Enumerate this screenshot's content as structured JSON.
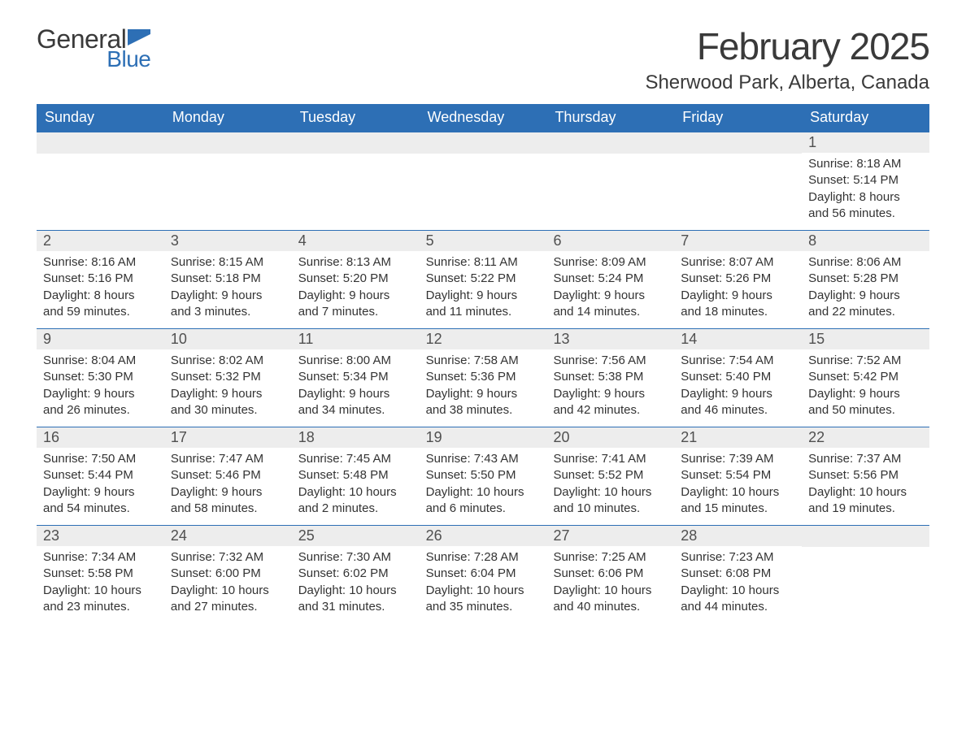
{
  "logo": {
    "word1": "General",
    "word2": "Blue",
    "icon_fill": "#2d6fb5"
  },
  "header": {
    "month_title": "February 2025",
    "location": "Sherwood Park, Alberta, Canada"
  },
  "colors": {
    "header_bar": "#2d6fb5",
    "header_text": "#ffffff",
    "day_band": "#ededed",
    "week_border": "#2d6fb5",
    "text": "#333333",
    "title_text": "#3a3a3a",
    "background": "#ffffff"
  },
  "typography": {
    "month_title_fontsize": 46,
    "location_fontsize": 24,
    "dow_fontsize": 18,
    "daynum_fontsize": 18,
    "body_fontsize": 15,
    "font_family": "Segoe UI"
  },
  "days_of_week": [
    "Sunday",
    "Monday",
    "Tuesday",
    "Wednesday",
    "Thursday",
    "Friday",
    "Saturday"
  ],
  "leading_blanks": 6,
  "days": [
    {
      "n": 1,
      "sunrise": "8:18 AM",
      "sunset": "5:14 PM",
      "daylight": "8 hours and 56 minutes."
    },
    {
      "n": 2,
      "sunrise": "8:16 AM",
      "sunset": "5:16 PM",
      "daylight": "8 hours and 59 minutes."
    },
    {
      "n": 3,
      "sunrise": "8:15 AM",
      "sunset": "5:18 PM",
      "daylight": "9 hours and 3 minutes."
    },
    {
      "n": 4,
      "sunrise": "8:13 AM",
      "sunset": "5:20 PM",
      "daylight": "9 hours and 7 minutes."
    },
    {
      "n": 5,
      "sunrise": "8:11 AM",
      "sunset": "5:22 PM",
      "daylight": "9 hours and 11 minutes."
    },
    {
      "n": 6,
      "sunrise": "8:09 AM",
      "sunset": "5:24 PM",
      "daylight": "9 hours and 14 minutes."
    },
    {
      "n": 7,
      "sunrise": "8:07 AM",
      "sunset": "5:26 PM",
      "daylight": "9 hours and 18 minutes."
    },
    {
      "n": 8,
      "sunrise": "8:06 AM",
      "sunset": "5:28 PM",
      "daylight": "9 hours and 22 minutes."
    },
    {
      "n": 9,
      "sunrise": "8:04 AM",
      "sunset": "5:30 PM",
      "daylight": "9 hours and 26 minutes."
    },
    {
      "n": 10,
      "sunrise": "8:02 AM",
      "sunset": "5:32 PM",
      "daylight": "9 hours and 30 minutes."
    },
    {
      "n": 11,
      "sunrise": "8:00 AM",
      "sunset": "5:34 PM",
      "daylight": "9 hours and 34 minutes."
    },
    {
      "n": 12,
      "sunrise": "7:58 AM",
      "sunset": "5:36 PM",
      "daylight": "9 hours and 38 minutes."
    },
    {
      "n": 13,
      "sunrise": "7:56 AM",
      "sunset": "5:38 PM",
      "daylight": "9 hours and 42 minutes."
    },
    {
      "n": 14,
      "sunrise": "7:54 AM",
      "sunset": "5:40 PM",
      "daylight": "9 hours and 46 minutes."
    },
    {
      "n": 15,
      "sunrise": "7:52 AM",
      "sunset": "5:42 PM",
      "daylight": "9 hours and 50 minutes."
    },
    {
      "n": 16,
      "sunrise": "7:50 AM",
      "sunset": "5:44 PM",
      "daylight": "9 hours and 54 minutes."
    },
    {
      "n": 17,
      "sunrise": "7:47 AM",
      "sunset": "5:46 PM",
      "daylight": "9 hours and 58 minutes."
    },
    {
      "n": 18,
      "sunrise": "7:45 AM",
      "sunset": "5:48 PM",
      "daylight": "10 hours and 2 minutes."
    },
    {
      "n": 19,
      "sunrise": "7:43 AM",
      "sunset": "5:50 PM",
      "daylight": "10 hours and 6 minutes."
    },
    {
      "n": 20,
      "sunrise": "7:41 AM",
      "sunset": "5:52 PM",
      "daylight": "10 hours and 10 minutes."
    },
    {
      "n": 21,
      "sunrise": "7:39 AM",
      "sunset": "5:54 PM",
      "daylight": "10 hours and 15 minutes."
    },
    {
      "n": 22,
      "sunrise": "7:37 AM",
      "sunset": "5:56 PM",
      "daylight": "10 hours and 19 minutes."
    },
    {
      "n": 23,
      "sunrise": "7:34 AM",
      "sunset": "5:58 PM",
      "daylight": "10 hours and 23 minutes."
    },
    {
      "n": 24,
      "sunrise": "7:32 AM",
      "sunset": "6:00 PM",
      "daylight": "10 hours and 27 minutes."
    },
    {
      "n": 25,
      "sunrise": "7:30 AM",
      "sunset": "6:02 PM",
      "daylight": "10 hours and 31 minutes."
    },
    {
      "n": 26,
      "sunrise": "7:28 AM",
      "sunset": "6:04 PM",
      "daylight": "10 hours and 35 minutes."
    },
    {
      "n": 27,
      "sunrise": "7:25 AM",
      "sunset": "6:06 PM",
      "daylight": "10 hours and 40 minutes."
    },
    {
      "n": 28,
      "sunrise": "7:23 AM",
      "sunset": "6:08 PM",
      "daylight": "10 hours and 44 minutes."
    }
  ],
  "labels": {
    "sunrise": "Sunrise:",
    "sunset": "Sunset:",
    "daylight": "Daylight:"
  }
}
